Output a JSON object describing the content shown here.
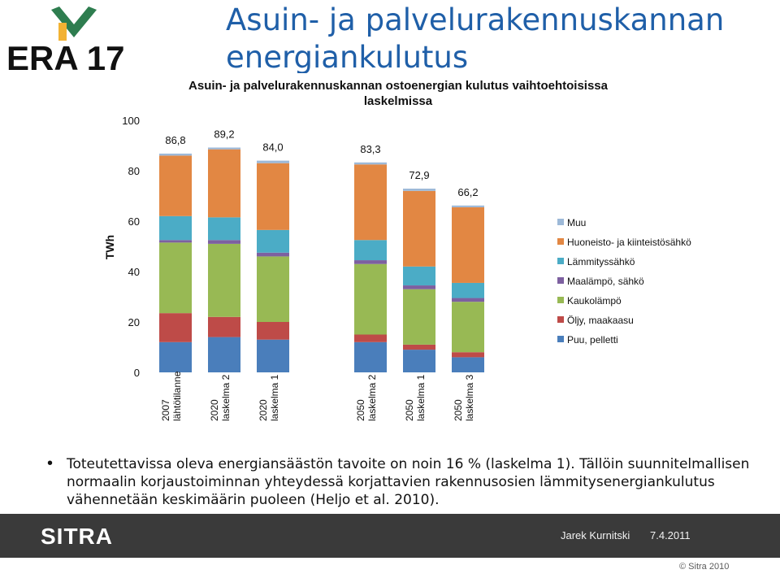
{
  "logo": {
    "text": "ERA 17",
    "accent": "#2e7d4f",
    "blue": "#1f5fa8"
  },
  "slide_title": "Asuin- ja palvelurakennuskannan energiankulutus",
  "chart_data": {
    "type": "bar",
    "stacked": true,
    "title": "Asuin- ja palvelurakennuskannan ostoenergian kulutus vaihtoehtoisissa laskelmissa",
    "ylabel": "TWh",
    "xlabel": "",
    "ylim": [
      0,
      100
    ],
    "yticks": [
      0,
      20,
      40,
      60,
      80,
      100
    ],
    "grid": false,
    "legend_position": "right",
    "categories": [
      "2007 lähtötilanne",
      "2020 laskelma 2",
      "2020 laskelma 1",
      "2050 laskelma 2",
      "2050 laskelma 1",
      "2050 laskelma 3"
    ],
    "category_lines": [
      [
        "2007",
        "lähtötilanne"
      ],
      [
        "2020",
        "laskelma 2"
      ],
      [
        "2020",
        "laskelma 1"
      ],
      [
        "2050",
        "laskelma 2"
      ],
      [
        "2050",
        "laskelma 1"
      ],
      [
        "2050",
        "laskelma 3"
      ]
    ],
    "groups": [
      0,
      0,
      0,
      1,
      1,
      1
    ],
    "totals": [
      86.8,
      89.2,
      84.0,
      83.3,
      72.9,
      66.2
    ],
    "total_labels": [
      "86,8",
      "89,2",
      "84,0",
      "83,3",
      "72,9",
      "66,2"
    ],
    "series": [
      {
        "name": "Puu, pelletti",
        "color": "#4a7ebb",
        "values": [
          12,
          14,
          13,
          12,
          9,
          6
        ]
      },
      {
        "name": "Öljy, maakaasu",
        "color": "#be4b48",
        "values": [
          11.5,
          8,
          7,
          3,
          2,
          2
        ]
      },
      {
        "name": "Kaukolämpö",
        "color": "#98b954",
        "values": [
          28,
          29,
          26,
          28,
          22,
          20
        ]
      },
      {
        "name": "Maalämpö, sähkö",
        "color": "#7d60a0",
        "values": [
          1,
          1.5,
          1.5,
          1.5,
          1.5,
          1.5
        ]
      },
      {
        "name": "Lämmityssähkö",
        "color": "#4bacc6",
        "values": [
          9.5,
          9,
          9,
          8,
          7.5,
          6
        ]
      },
      {
        "name": "Huoneisto- ja kiinteistösähkö",
        "color": "#e28743",
        "values": [
          24,
          27,
          26.5,
          30,
          30,
          30
        ]
      },
      {
        "name": "Muu",
        "color": "#9db9d8",
        "values": [
          0.8,
          0.7,
          1.0,
          0.8,
          0.9,
          0.7
        ]
      }
    ]
  },
  "bullet": "Toteutettavissa oleva energiansäästön tavoite on noin 16 % (laskelma 1). Tällöin suunnitelmallisen normaalin korjaustoiminnan yhteydessä korjattavien rakennusosien lämmitysenergiankulutus vähennetään keskimäärin puoleen (Heljo et al. 2010).",
  "footer": {
    "logo_text": "SITRA",
    "author": "Jarek Kurnitski",
    "date": "7.4.2011",
    "bar_color": "#3a3a3a"
  },
  "copyright": "© Sitra 2010"
}
